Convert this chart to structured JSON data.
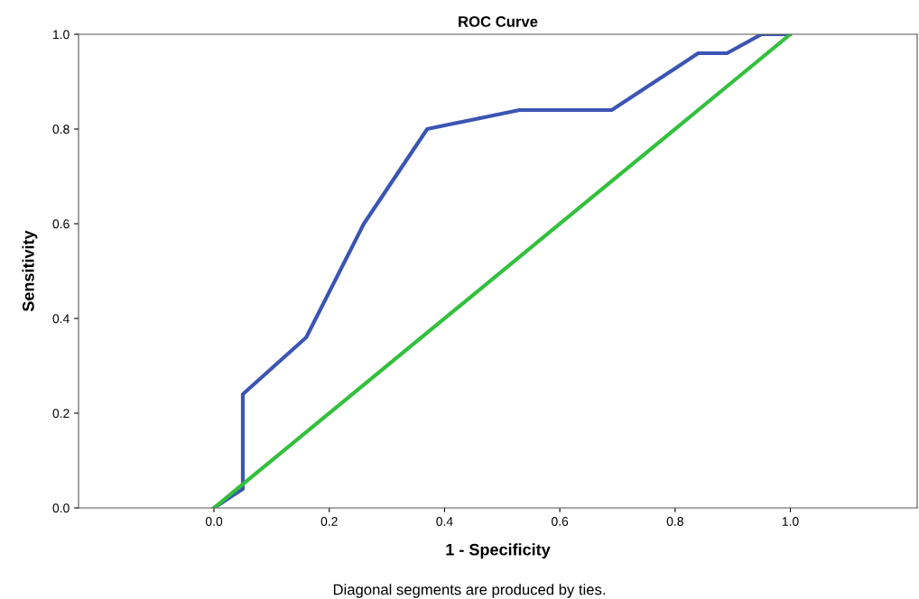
{
  "chart_data": {
    "type": "line",
    "title": "ROC Curve",
    "xlabel": "1 - Specificity",
    "ylabel": "Sensitivity",
    "annotations": [
      "Diagonal segments are produced by ties."
    ],
    "series": [
      {
        "color": "#3b55b3",
        "x": [
          0,
          0.05,
          0.05,
          0.16,
          0.26,
          0.37,
          0.53,
          0.69,
          0.84,
          0.89,
          0.95,
          1.0
        ],
        "values": [
          0,
          0.04,
          0.24,
          0.36,
          0.6,
          0.8,
          0.84,
          0.84,
          0.96,
          0.96,
          1.0,
          1.0
        ]
      },
      {
        "color": "#33c03c",
        "x": [
          0,
          1.0
        ],
        "values": [
          0,
          1.0
        ]
      }
    ],
    "xlim": [
      -0.235,
      1.22
    ],
    "ylim": [
      0,
      1.0
    ],
    "xticks": [
      {
        "value": 0,
        "label": "0.0"
      },
      0.2,
      0.4,
      0.6,
      0.8,
      {
        "value": 1.0,
        "label": "1.0"
      }
    ],
    "yticks": [
      {
        "value": 0,
        "label": "0.0"
      },
      0.2,
      0.4,
      0.6,
      0.8,
      {
        "value": 1.0,
        "label": "1.0"
      }
    ],
    "grid": false,
    "legend": false,
    "marker": "none",
    "line_style": "solid"
  }
}
